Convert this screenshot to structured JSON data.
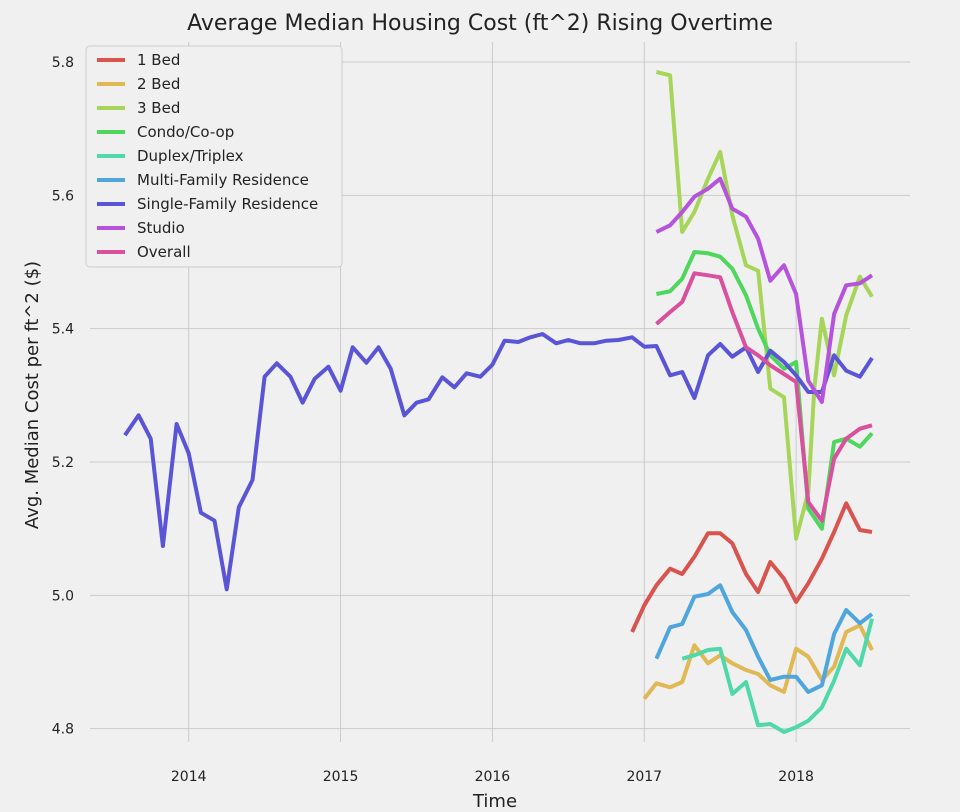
{
  "chart_data": {
    "type": "line",
    "title": "Average Median Housing Cost (ft^2) Rising Overtime",
    "xlabel": "Time",
    "ylabel": "Avg. Median Cost per ft^2 ($)",
    "xlim": [
      2013.35,
      2018.75
    ],
    "ylim": [
      4.78,
      5.83
    ],
    "xticks": [
      2014,
      2015,
      2016,
      2017,
      2018
    ],
    "xtick_labels": [
      "2014",
      "2015",
      "2016",
      "2017",
      "2018"
    ],
    "yticks": [
      4.8,
      5.0,
      5.2,
      5.4,
      5.6,
      5.8
    ],
    "ytick_labels": [
      "4.8",
      "5.0",
      "5.2",
      "5.4",
      "5.6",
      "5.8"
    ],
    "grid": true,
    "legend_position": "top-left",
    "series": [
      {
        "name": "1 Bed",
        "color": "#d9534f",
        "points": [
          [
            2016.92,
            4.945
          ],
          [
            2017.0,
            4.985
          ],
          [
            2017.08,
            5.015
          ],
          [
            2017.17,
            5.04
          ],
          [
            2017.25,
            5.032
          ],
          [
            2017.33,
            5.058
          ],
          [
            2017.42,
            5.093
          ],
          [
            2017.5,
            5.093
          ],
          [
            2017.58,
            5.078
          ],
          [
            2017.67,
            5.032
          ],
          [
            2017.75,
            5.005
          ],
          [
            2017.83,
            5.05
          ],
          [
            2017.92,
            5.025
          ],
          [
            2018.0,
            4.99
          ],
          [
            2018.08,
            5.018
          ],
          [
            2018.17,
            5.055
          ],
          [
            2018.25,
            5.095
          ],
          [
            2018.33,
            5.138
          ],
          [
            2018.42,
            5.098
          ],
          [
            2018.5,
            5.095
          ]
        ]
      },
      {
        "name": "2 Bed",
        "color": "#e0b854",
        "points": [
          [
            2017.0,
            4.845
          ],
          [
            2017.08,
            4.868
          ],
          [
            2017.17,
            4.862
          ],
          [
            2017.25,
            4.87
          ],
          [
            2017.33,
            4.925
          ],
          [
            2017.42,
            4.898
          ],
          [
            2017.5,
            4.91
          ],
          [
            2017.58,
            4.898
          ],
          [
            2017.67,
            4.888
          ],
          [
            2017.75,
            4.882
          ],
          [
            2017.83,
            4.865
          ],
          [
            2017.92,
            4.855
          ],
          [
            2018.0,
            4.92
          ],
          [
            2018.08,
            4.908
          ],
          [
            2018.17,
            4.873
          ],
          [
            2018.25,
            4.893
          ],
          [
            2018.33,
            4.945
          ],
          [
            2018.42,
            4.955
          ],
          [
            2018.5,
            4.918
          ]
        ]
      },
      {
        "name": "3 Bed",
        "color": "#a6d55a",
        "points": [
          [
            2017.08,
            5.785
          ],
          [
            2017.17,
            5.78
          ],
          [
            2017.25,
            5.545
          ],
          [
            2017.33,
            5.575
          ],
          [
            2017.42,
            5.625
          ],
          [
            2017.5,
            5.665
          ],
          [
            2017.58,
            5.57
          ],
          [
            2017.67,
            5.495
          ],
          [
            2017.75,
            5.487
          ],
          [
            2017.83,
            5.31
          ],
          [
            2017.92,
            5.297
          ],
          [
            2018.0,
            5.085
          ],
          [
            2018.08,
            5.155
          ],
          [
            2018.12,
            5.31
          ],
          [
            2018.17,
            5.415
          ],
          [
            2018.25,
            5.33
          ],
          [
            2018.33,
            5.42
          ],
          [
            2018.42,
            5.478
          ],
          [
            2018.5,
            5.448
          ]
        ]
      },
      {
        "name": "Condo/Co-op",
        "color": "#4fd65c",
        "points": [
          [
            2017.08,
            5.452
          ],
          [
            2017.17,
            5.456
          ],
          [
            2017.25,
            5.475
          ],
          [
            2017.33,
            5.515
          ],
          [
            2017.42,
            5.513
          ],
          [
            2017.5,
            5.508
          ],
          [
            2017.58,
            5.49
          ],
          [
            2017.67,
            5.45
          ],
          [
            2017.75,
            5.4
          ],
          [
            2017.83,
            5.36
          ],
          [
            2017.92,
            5.34
          ],
          [
            2018.0,
            5.35
          ],
          [
            2018.08,
            5.13
          ],
          [
            2018.17,
            5.1
          ],
          [
            2018.25,
            5.23
          ],
          [
            2018.33,
            5.235
          ],
          [
            2018.42,
            5.223
          ],
          [
            2018.5,
            5.243
          ]
        ]
      },
      {
        "name": "Duplex/Triplex",
        "color": "#4fd8aa",
        "points": [
          [
            2017.25,
            4.905
          ],
          [
            2017.33,
            4.91
          ],
          [
            2017.42,
            4.918
          ],
          [
            2017.5,
            4.92
          ],
          [
            2017.58,
            4.852
          ],
          [
            2017.67,
            4.87
          ],
          [
            2017.75,
            4.805
          ],
          [
            2017.83,
            4.807
          ],
          [
            2017.92,
            4.795
          ],
          [
            2018.0,
            4.802
          ],
          [
            2018.08,
            4.812
          ],
          [
            2018.17,
            4.832
          ],
          [
            2018.25,
            4.872
          ],
          [
            2018.33,
            4.92
          ],
          [
            2018.42,
            4.895
          ],
          [
            2018.5,
            4.965
          ]
        ]
      },
      {
        "name": "Multi-Family Residence",
        "color": "#4fa6dc",
        "points": [
          [
            2017.08,
            4.905
          ],
          [
            2017.17,
            4.952
          ],
          [
            2017.25,
            4.957
          ],
          [
            2017.33,
            4.998
          ],
          [
            2017.42,
            5.002
          ],
          [
            2017.5,
            5.015
          ],
          [
            2017.58,
            4.975
          ],
          [
            2017.67,
            4.948
          ],
          [
            2017.75,
            4.908
          ],
          [
            2017.83,
            4.873
          ],
          [
            2017.92,
            4.878
          ],
          [
            2018.0,
            4.878
          ],
          [
            2018.08,
            4.855
          ],
          [
            2018.17,
            4.865
          ],
          [
            2018.25,
            4.942
          ],
          [
            2018.33,
            4.978
          ],
          [
            2018.42,
            4.958
          ],
          [
            2018.5,
            4.972
          ]
        ]
      },
      {
        "name": "Single-Family Residence",
        "color": "#5a55d6",
        "points": [
          [
            2013.58,
            5.24
          ],
          [
            2013.67,
            5.27
          ],
          [
            2013.75,
            5.235
          ],
          [
            2013.83,
            5.074
          ],
          [
            2013.92,
            5.257
          ],
          [
            2014.0,
            5.213
          ],
          [
            2014.08,
            5.124
          ],
          [
            2014.17,
            5.112
          ],
          [
            2014.25,
            5.009
          ],
          [
            2014.33,
            5.132
          ],
          [
            2014.42,
            5.173
          ],
          [
            2014.5,
            5.328
          ],
          [
            2014.58,
            5.348
          ],
          [
            2014.67,
            5.328
          ],
          [
            2014.75,
            5.289
          ],
          [
            2014.83,
            5.325
          ],
          [
            2014.92,
            5.343
          ],
          [
            2015.0,
            5.307
          ],
          [
            2015.08,
            5.372
          ],
          [
            2015.17,
            5.349
          ],
          [
            2015.25,
            5.372
          ],
          [
            2015.33,
            5.34
          ],
          [
            2015.42,
            5.27
          ],
          [
            2015.5,
            5.289
          ],
          [
            2015.58,
            5.294
          ],
          [
            2015.67,
            5.327
          ],
          [
            2015.75,
            5.312
          ],
          [
            2015.83,
            5.333
          ],
          [
            2015.92,
            5.328
          ],
          [
            2016.0,
            5.346
          ],
          [
            2016.08,
            5.382
          ],
          [
            2016.17,
            5.38
          ],
          [
            2016.25,
            5.387
          ],
          [
            2016.33,
            5.392
          ],
          [
            2016.42,
            5.378
          ],
          [
            2016.5,
            5.383
          ],
          [
            2016.58,
            5.378
          ],
          [
            2016.67,
            5.378
          ],
          [
            2016.75,
            5.382
          ],
          [
            2016.83,
            5.383
          ],
          [
            2016.92,
            5.387
          ],
          [
            2017.0,
            5.373
          ],
          [
            2017.08,
            5.374
          ],
          [
            2017.17,
            5.33
          ],
          [
            2017.25,
            5.335
          ],
          [
            2017.33,
            5.296
          ],
          [
            2017.42,
            5.36
          ],
          [
            2017.5,
            5.377
          ],
          [
            2017.58,
            5.358
          ],
          [
            2017.67,
            5.372
          ],
          [
            2017.75,
            5.335
          ],
          [
            2017.83,
            5.367
          ],
          [
            2017.92,
            5.35
          ],
          [
            2018.0,
            5.33
          ],
          [
            2018.08,
            5.305
          ],
          [
            2018.17,
            5.305
          ],
          [
            2018.25,
            5.36
          ],
          [
            2018.33,
            5.337
          ],
          [
            2018.42,
            5.328
          ],
          [
            2018.5,
            5.356
          ]
        ]
      },
      {
        "name": "Studio",
        "color": "#b553dd",
        "points": [
          [
            2017.08,
            5.545
          ],
          [
            2017.17,
            5.555
          ],
          [
            2017.25,
            5.575
          ],
          [
            2017.33,
            5.598
          ],
          [
            2017.42,
            5.61
          ],
          [
            2017.5,
            5.625
          ],
          [
            2017.58,
            5.58
          ],
          [
            2017.67,
            5.568
          ],
          [
            2017.75,
            5.535
          ],
          [
            2017.83,
            5.472
          ],
          [
            2017.92,
            5.495
          ],
          [
            2018.0,
            5.452
          ],
          [
            2018.08,
            5.322
          ],
          [
            2018.17,
            5.29
          ],
          [
            2018.25,
            5.422
          ],
          [
            2018.33,
            5.465
          ],
          [
            2018.42,
            5.468
          ],
          [
            2018.5,
            5.48
          ]
        ]
      },
      {
        "name": "Overall",
        "color": "#d9509e",
        "points": [
          [
            2017.08,
            5.407
          ],
          [
            2017.17,
            5.425
          ],
          [
            2017.25,
            5.44
          ],
          [
            2017.33,
            5.483
          ],
          [
            2017.42,
            5.48
          ],
          [
            2017.5,
            5.477
          ],
          [
            2017.58,
            5.425
          ],
          [
            2017.67,
            5.372
          ],
          [
            2017.75,
            5.36
          ],
          [
            2017.83,
            5.345
          ],
          [
            2017.92,
            5.332
          ],
          [
            2018.0,
            5.32
          ],
          [
            2018.08,
            5.14
          ],
          [
            2018.17,
            5.112
          ],
          [
            2018.25,
            5.205
          ],
          [
            2018.33,
            5.235
          ],
          [
            2018.42,
            5.25
          ],
          [
            2018.5,
            5.255
          ]
        ]
      }
    ]
  }
}
